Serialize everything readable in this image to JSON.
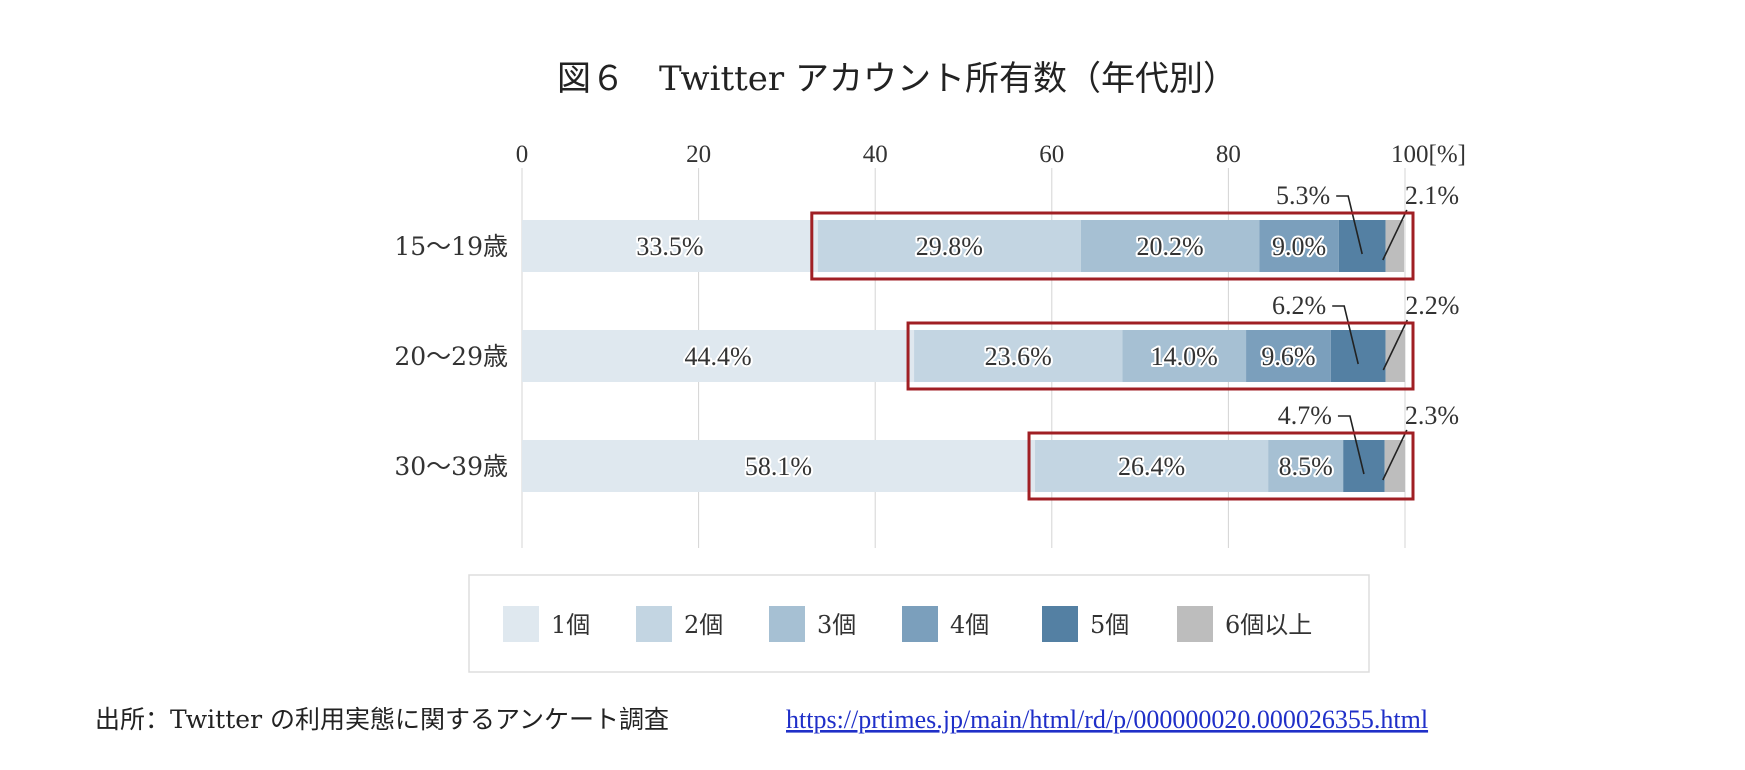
{
  "title": "図６　Twitter アカウント所有数（年代別）",
  "source_label": "出所：Twitter の利用実態に関するアンケート調査",
  "source_url": "https://prtimes.jp/main/html/rd/p/000000020.000026355.html",
  "colors": [
    "#dfe8ef",
    "#c3d5e2",
    "#a6c0d3",
    "#7b9fbc",
    "#5480a3",
    "#bdbdbd"
  ],
  "highlight_color": "#a01f24",
  "chart_data": {
    "type": "bar",
    "orientation": "horizontal",
    "stacked": true,
    "title": "図６　Twitter アカウント所有数（年代別）",
    "xlim": [
      0,
      100
    ],
    "x_ticks": [
      0,
      20,
      40,
      60,
      80,
      100
    ],
    "x_tick_labels": [
      "0",
      "20",
      "40",
      "60",
      "80",
      "100[%]"
    ],
    "grid": true,
    "legend_position": "bottom",
    "categories": [
      "15〜19歳",
      "20〜29歳",
      "30〜39歳"
    ],
    "series": [
      {
        "name": "1個",
        "values": [
          33.5,
          44.4,
          58.1
        ],
        "labels": [
          "33.5%",
          "44.4%",
          "58.1%"
        ]
      },
      {
        "name": "2個",
        "values": [
          29.8,
          23.6,
          26.4
        ],
        "labels": [
          "29.8%",
          "23.6%",
          "26.4%"
        ]
      },
      {
        "name": "3個",
        "values": [
          20.2,
          14.0,
          8.5
        ],
        "labels": [
          "20.2%",
          "14.0%",
          "8.5%"
        ]
      },
      {
        "name": "4個",
        "values": [
          9.0,
          9.6,
          0
        ],
        "labels": [
          "9.0%",
          "9.6%",
          ""
        ]
      },
      {
        "name": "5個",
        "values": [
          5.3,
          6.2,
          4.7
        ],
        "labels": [
          "5.3%",
          "6.2%",
          "4.7%"
        ]
      },
      {
        "name": "6個以上",
        "values": [
          2.1,
          2.2,
          2.3
        ],
        "labels": [
          "2.1%",
          "2.2%",
          "2.3%"
        ]
      }
    ],
    "annotation": "Segments from 2個 onward are outlined with a dark red rectangle in each row"
  }
}
